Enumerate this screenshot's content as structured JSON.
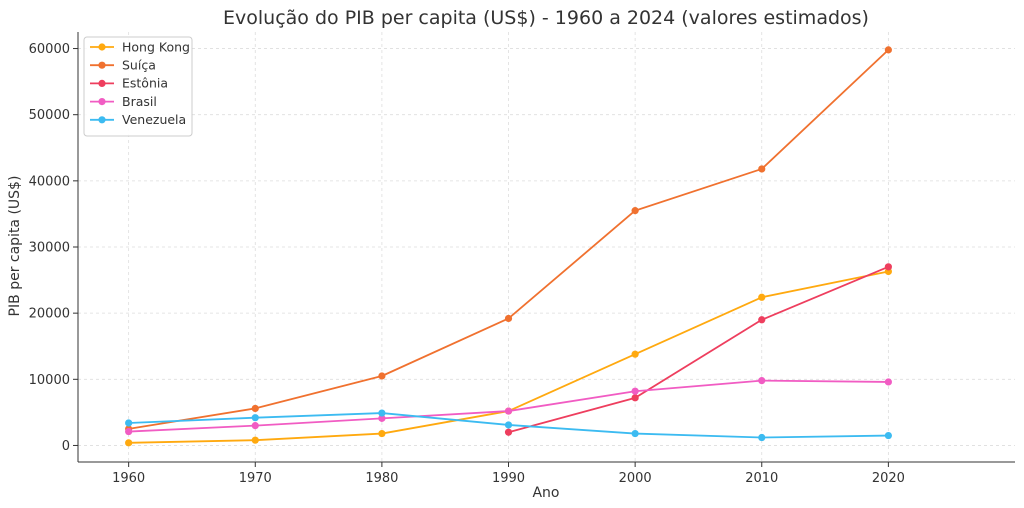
{
  "chart_data": {
    "type": "line",
    "title": "Evolução do PIB per capita (US$) - 1960 a 2024 (valores estimados)",
    "xlabel": "Ano",
    "ylabel": "PIB per capita (US$)",
    "x": [
      1960,
      1970,
      1980,
      1990,
      2000,
      2010,
      2020
    ],
    "xlim": [
      1956,
      2030
    ],
    "ylim": [
      -2500,
      62500
    ],
    "xticks": [
      1960,
      1970,
      1980,
      1990,
      2000,
      2010,
      2020
    ],
    "yticks": [
      0,
      10000,
      20000,
      30000,
      40000,
      50000,
      60000
    ],
    "grid": true,
    "legend_position": "top-left",
    "series": [
      {
        "name": "Hong Kong",
        "color": "#FFA90F",
        "points": [
          [
            1960,
            400
          ],
          [
            1970,
            800
          ],
          [
            1980,
            1800
          ],
          [
            1990,
            5200
          ],
          [
            2000,
            13800
          ],
          [
            2010,
            22400
          ],
          [
            2020,
            26300
          ]
        ]
      },
      {
        "name": "Suíça",
        "color": "#F0712F",
        "points": [
          [
            1960,
            2500
          ],
          [
            1970,
            5600
          ],
          [
            1980,
            10500
          ],
          [
            1990,
            19200
          ],
          [
            2000,
            35500
          ],
          [
            2010,
            41800
          ],
          [
            2020,
            59800
          ]
        ]
      },
      {
        "name": "Estônia",
        "color": "#EE3E5E",
        "points": [
          [
            1990,
            2000
          ],
          [
            2000,
            7200
          ],
          [
            2010,
            19000
          ],
          [
            2020,
            27000
          ]
        ]
      },
      {
        "name": "Brasil",
        "color": "#F15CC3",
        "points": [
          [
            1960,
            2100
          ],
          [
            1970,
            3000
          ],
          [
            1980,
            4100
          ],
          [
            1990,
            5200
          ],
          [
            2000,
            8200
          ],
          [
            2010,
            9800
          ],
          [
            2020,
            9600
          ]
        ]
      },
      {
        "name": "Venezuela",
        "color": "#3CBBF1",
        "points": [
          [
            1960,
            3400
          ],
          [
            1970,
            4200
          ],
          [
            1980,
            4900
          ],
          [
            1990,
            3100
          ],
          [
            2000,
            1800
          ],
          [
            2010,
            1200
          ],
          [
            2020,
            1500
          ]
        ]
      }
    ]
  }
}
